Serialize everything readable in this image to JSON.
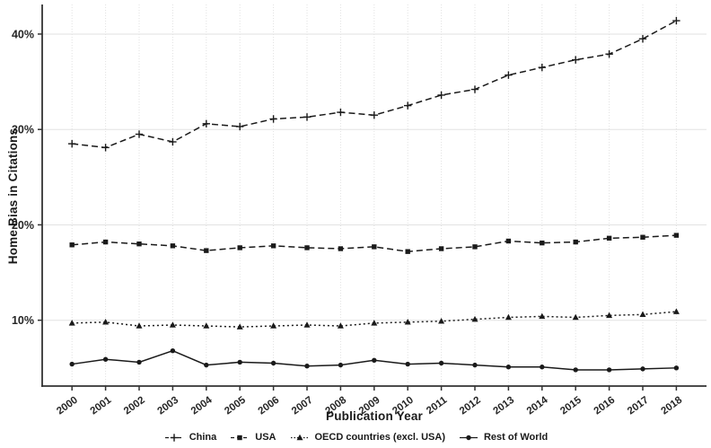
{
  "figure": {
    "xlabel": "Publication Year",
    "ylabel": "Home Bias in Citations"
  },
  "chart_data": {
    "type": "line",
    "title": "",
    "xlabel": "Publication Year",
    "ylabel": "Home Bias in Citations",
    "x": [
      "2000",
      "2001",
      "2002",
      "2003",
      "2004",
      "2005",
      "2006",
      "2007",
      "2008",
      "2009",
      "2010",
      "2011",
      "2012",
      "2013",
      "2014",
      "2015",
      "2016",
      "2017",
      "2018"
    ],
    "ylim": [
      3.1,
      43.1
    ],
    "yticks": [
      {
        "value": 10,
        "label": "10%"
      },
      {
        "value": 20,
        "label": "20%"
      },
      {
        "value": 30,
        "label": "30%"
      },
      {
        "value": 40,
        "label": "40%"
      }
    ],
    "grid": true,
    "legend_position": "bottom",
    "series": [
      {
        "name": "China",
        "marker": "plus",
        "line": "dashed",
        "values": [
          28.5,
          28.1,
          29.5,
          28.7,
          30.6,
          30.3,
          31.1,
          31.3,
          31.8,
          31.5,
          32.5,
          33.6,
          34.2,
          35.7,
          36.5,
          37.3,
          37.9,
          39.5,
          41.4
        ]
      },
      {
        "name": "USA",
        "marker": "square",
        "line": "dashed",
        "values": [
          17.9,
          18.2,
          18.0,
          17.8,
          17.3,
          17.6,
          17.8,
          17.6,
          17.5,
          17.7,
          17.2,
          17.5,
          17.7,
          18.3,
          18.1,
          18.2,
          18.6,
          18.7,
          18.9
        ]
      },
      {
        "name": "OECD countries (excl. USA)",
        "marker": "triangle",
        "line": "dotted",
        "values": [
          9.7,
          9.8,
          9.4,
          9.5,
          9.4,
          9.3,
          9.4,
          9.5,
          9.4,
          9.7,
          9.8,
          9.9,
          10.1,
          10.3,
          10.4,
          10.3,
          10.5,
          10.6,
          10.9
        ]
      },
      {
        "name": "Rest of World",
        "marker": "circle",
        "line": "solid",
        "values": [
          5.4,
          5.9,
          5.6,
          6.8,
          5.3,
          5.6,
          5.5,
          5.2,
          5.3,
          5.8,
          5.4,
          5.5,
          5.3,
          5.1,
          5.1,
          4.8,
          4.8,
          4.9,
          5.0
        ]
      }
    ],
    "colors": {
      "line": "#1a1a1a",
      "grid": "#e2e2e2",
      "axis": "#333333",
      "text": "#262626"
    }
  }
}
